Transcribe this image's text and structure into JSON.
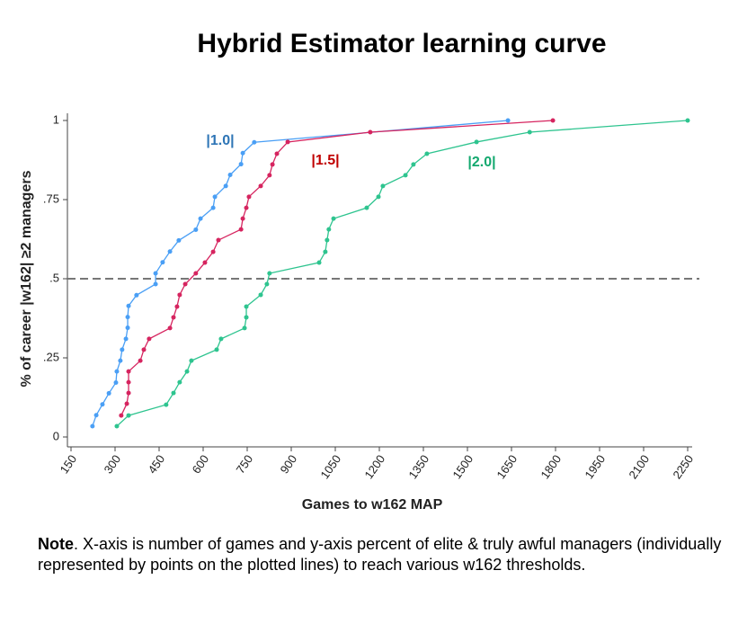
{
  "chart_data": {
    "type": "line",
    "title": "Hybrid Estimator learning curve",
    "x_label": "Games to w162 MAP",
    "y_label": "% of career |w162| ≥2 managers",
    "xlim": [
      150,
      2250
    ],
    "ylim": [
      0,
      1
    ],
    "xticks": [
      150,
      300,
      450,
      600,
      750,
      900,
      1050,
      1200,
      1350,
      1500,
      1650,
      1800,
      1950,
      2100,
      2250
    ],
    "yticks": [
      0,
      {
        "value": 0.25,
        "label": ".25"
      },
      {
        "value": 0.5,
        "label": ".5"
      },
      {
        "value": 0.75,
        "label": ".75"
      },
      1
    ],
    "reference_line": 0.5,
    "series": [
      {
        "name": "|1.0|",
        "color": "#4a9ff5",
        "label_color": "#2e75b6",
        "x": [
          223,
          236,
          257,
          279,
          303,
          306,
          318,
          324,
          337,
          343,
          343,
          346,
          373,
          438,
          438,
          462,
          487,
          517,
          575,
          591,
          634,
          640,
          677,
          692,
          729,
          735,
          774,
          1638
        ],
        "values": [
          0.034,
          0.069,
          0.103,
          0.138,
          0.172,
          0.207,
          0.241,
          0.276,
          0.31,
          0.345,
          0.379,
          0.414,
          0.448,
          0.483,
          0.517,
          0.552,
          0.586,
          0.621,
          0.655,
          0.69,
          0.724,
          0.759,
          0.793,
          0.828,
          0.862,
          0.897,
          0.931,
          1
        ]
      },
      {
        "name": "|1.5|",
        "color": "#d6245f",
        "label_color": "#c00000",
        "x": [
          321,
          340,
          346,
          346,
          346,
          386,
          398,
          416,
          487,
          499,
          511,
          520,
          539,
          575,
          606,
          634,
          652,
          729,
          735,
          747,
          756,
          796,
          826,
          836,
          851,
          888,
          1169,
          1791
        ],
        "values": [
          0.068,
          0.105,
          0.139,
          0.173,
          0.207,
          0.241,
          0.276,
          0.31,
          0.344,
          0.378,
          0.412,
          0.449,
          0.483,
          0.517,
          0.551,
          0.585,
          0.622,
          0.656,
          0.69,
          0.724,
          0.759,
          0.793,
          0.827,
          0.861,
          0.895,
          0.932,
          0.963,
          1
        ]
      },
      {
        "name": "|2.0|",
        "color": "#2ec48f",
        "label_color": "#12a86e",
        "x": [
          306,
          346,
          474,
          499,
          520,
          545,
          560,
          646,
          661,
          741,
          747,
          747,
          796,
          817,
          826,
          995,
          1016,
          1022,
          1028,
          1044,
          1157,
          1197,
          1212,
          1289,
          1316,
          1362,
          1531,
          1712,
          2250
        ],
        "values": [
          0.034,
          0.068,
          0.102,
          0.139,
          0.173,
          0.207,
          0.241,
          0.276,
          0.31,
          0.344,
          0.378,
          0.412,
          0.449,
          0.483,
          0.517,
          0.551,
          0.585,
          0.622,
          0.656,
          0.69,
          0.724,
          0.759,
          0.793,
          0.827,
          0.861,
          0.895,
          0.932,
          0.963,
          1
        ]
      }
    ]
  },
  "note": {
    "label": "Note",
    "text": ". X-axis is number of games and y-axis percent of elite & truly awful managers (individually represented by points on the plotted lines) to reach various w162 thresholds."
  }
}
